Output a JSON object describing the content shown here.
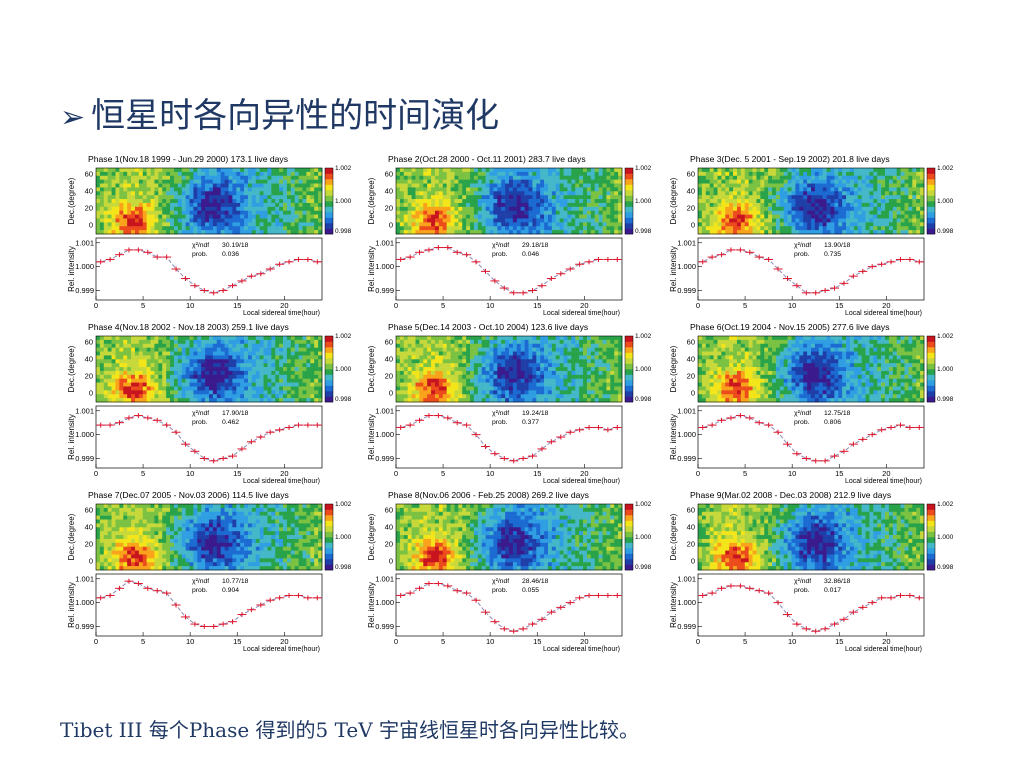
{
  "slide": {
    "title_bullet": "➢",
    "title": "恒星时各向异性的时间演化",
    "footer": "Tibet III 每个Phase 得到的5 TeV 宇宙线恒星时各向异性比较。"
  },
  "colors": {
    "title_text": "#1f3864",
    "curve": "#8a8ab8",
    "points": "#e0142b",
    "palette": [
      "#3a1a8c",
      "#1f3ea8",
      "#1c6bd2",
      "#2f9ee2",
      "#44b7c9",
      "#29a34a",
      "#7cc242",
      "#c7d93a",
      "#f3e51a",
      "#f9a21b",
      "#ec4b1c",
      "#c8141e"
    ]
  },
  "chart_data": [
    {
      "type": "line",
      "phase_title": "Phase 1(Nov.18 1999 - Jun.29 2000) 173.1 live days",
      "chi2_label": "χ²/ndf",
      "chi2": "30.19/18",
      "prob_label": "prob.",
      "prob": "0.036",
      "x": [
        0.5,
        1.5,
        2.5,
        3.5,
        4.5,
        5.5,
        6.5,
        7.5,
        8.5,
        9.5,
        10.5,
        11.5,
        12.5,
        13.5,
        14.5,
        15.5,
        16.5,
        17.5,
        18.5,
        19.5,
        20.5,
        21.5,
        22.5,
        23.5
      ],
      "y": [
        1.0002,
        1.0003,
        1.0005,
        1.0007,
        1.0007,
        1.0006,
        1.0004,
        1.0004,
        0.9999,
        0.9995,
        0.9992,
        0.999,
        0.9989,
        0.999,
        0.9992,
        0.9994,
        0.9996,
        0.9997,
        0.9999,
        1.0001,
        1.0002,
        1.0003,
        1.0003,
        1.0002
      ],
      "xlabel": "Local sidereal time(hour)",
      "ylabel": "Rel. intensity",
      "map_ylabel": "Dec.(degree)",
      "xticks": [
        0,
        5,
        10,
        15,
        20
      ],
      "yticks": [
        "1.001",
        "1.000",
        "0.999"
      ],
      "map_yticks": [
        "60",
        "40",
        "20",
        "0"
      ],
      "colorbar_ticks": [
        "1.002",
        "1.000",
        "0.998"
      ],
      "xlim": [
        0,
        24
      ],
      "ylim": [
        0.9986,
        1.0012
      ]
    },
    {
      "type": "line",
      "phase_title": "Phase 2(Oct.28 2000 - Oct.11 2001) 283.7 live days",
      "chi2_label": "χ²/ndf",
      "chi2": "29.18/18",
      "prob_label": "prob.",
      "prob": "0.046",
      "x": [
        0.5,
        1.5,
        2.5,
        3.5,
        4.5,
        5.5,
        6.5,
        7.5,
        8.5,
        9.5,
        10.5,
        11.5,
        12.5,
        13.5,
        14.5,
        15.5,
        16.5,
        17.5,
        18.5,
        19.5,
        20.5,
        21.5,
        22.5,
        23.5
      ],
      "y": [
        1.0003,
        1.0004,
        1.0006,
        1.0007,
        1.0008,
        1.0008,
        1.0006,
        1.0005,
        1.0002,
        0.9998,
        0.9994,
        0.9991,
        0.9989,
        0.9989,
        0.999,
        0.9992,
        0.9995,
        0.9997,
        0.9999,
        1.0001,
        1.0002,
        1.0003,
        1.0003,
        1.0003
      ],
      "xlabel": "Local sidereal time(hour)",
      "ylabel": "Rel. intensity",
      "map_ylabel": "Dec.(degree)",
      "xticks": [
        0,
        5,
        10,
        15,
        20
      ],
      "yticks": [
        "1.001",
        "1.000",
        "0.999"
      ],
      "map_yticks": [
        "60",
        "40",
        "20",
        "0"
      ],
      "colorbar_ticks": [
        "1.002",
        "1.000",
        "0.998"
      ],
      "xlim": [
        0,
        24
      ],
      "ylim": [
        0.9986,
        1.0012
      ]
    },
    {
      "type": "line",
      "phase_title": "Phase 3(Dec. 5 2001 - Sep.19 2002) 201.8 live days",
      "chi2_label": "χ²/ndf",
      "chi2": "13.90/18",
      "prob_label": "prob.",
      "prob": "0.735",
      "x": [
        0.5,
        1.5,
        2.5,
        3.5,
        4.5,
        5.5,
        6.5,
        7.5,
        8.5,
        9.5,
        10.5,
        11.5,
        12.5,
        13.5,
        14.5,
        15.5,
        16.5,
        17.5,
        18.5,
        19.5,
        20.5,
        21.5,
        22.5,
        23.5
      ],
      "y": [
        1.0002,
        1.0004,
        1.0005,
        1.0007,
        1.0007,
        1.0006,
        1.0004,
        1.0003,
        0.9999,
        0.9995,
        0.9992,
        0.9989,
        0.9989,
        0.999,
        0.9991,
        0.9993,
        0.9996,
        0.9998,
        1.0,
        1.0001,
        1.0002,
        1.0003,
        1.0003,
        1.0002
      ],
      "xlabel": "Local sidereal time(hour)",
      "ylabel": "Rel. intensity",
      "map_ylabel": "Dec.(degree)",
      "xticks": [
        0,
        5,
        10,
        15,
        20
      ],
      "yticks": [
        "1.001",
        "1.000",
        "0.999"
      ],
      "map_yticks": [
        "60",
        "40",
        "20",
        "0"
      ],
      "colorbar_ticks": [
        "1.002",
        "1.000",
        "0.998"
      ],
      "xlim": [
        0,
        24
      ],
      "ylim": [
        0.9986,
        1.0012
      ]
    },
    {
      "type": "line",
      "phase_title": "Phase 4(Nov.18 2002 - Nov.18 2003) 259.1 live days",
      "chi2_label": "χ²/ndf",
      "chi2": "17.90/18",
      "prob_label": "prob.",
      "prob": "0.462",
      "x": [
        0.5,
        1.5,
        2.5,
        3.5,
        4.5,
        5.5,
        6.5,
        7.5,
        8.5,
        9.5,
        10.5,
        11.5,
        12.5,
        13.5,
        14.5,
        15.5,
        16.5,
        17.5,
        18.5,
        19.5,
        20.5,
        21.5,
        22.5,
        23.5
      ],
      "y": [
        1.0004,
        1.0004,
        1.0005,
        1.0007,
        1.0008,
        1.0007,
        1.0006,
        1.0004,
        1.0001,
        0.9996,
        0.9993,
        0.999,
        0.9989,
        0.999,
        0.9991,
        0.9994,
        0.9997,
        0.9999,
        1.0001,
        1.0002,
        1.0003,
        1.0004,
        1.0004,
        1.0004
      ],
      "xlabel": "Local sidereal time(hour)",
      "ylabel": "Rel. intensity",
      "map_ylabel": "Dec.(degree)",
      "xticks": [
        0,
        5,
        10,
        15,
        20
      ],
      "yticks": [
        "1.001",
        "1.000",
        "0.999"
      ],
      "map_yticks": [
        "60",
        "40",
        "20",
        "0"
      ],
      "colorbar_ticks": [
        "1.002",
        "1.000",
        "0.998"
      ],
      "xlim": [
        0,
        24
      ],
      "ylim": [
        0.9986,
        1.0012
      ]
    },
    {
      "type": "line",
      "phase_title": "Phase 5(Dec.14 2003 - Oct.10 2004) 123.6 live days",
      "chi2_label": "χ²/ndf",
      "chi2": "19.24/18",
      "prob_label": "prob.",
      "prob": "0.377",
      "x": [
        0.5,
        1.5,
        2.5,
        3.5,
        4.5,
        5.5,
        6.5,
        7.5,
        8.5,
        9.5,
        10.5,
        11.5,
        12.5,
        13.5,
        14.5,
        15.5,
        16.5,
        17.5,
        18.5,
        19.5,
        20.5,
        21.5,
        22.5,
        23.5
      ],
      "y": [
        1.0003,
        1.0004,
        1.0006,
        1.0008,
        1.0008,
        1.0007,
        1.0005,
        1.0004,
        1.0,
        0.9995,
        0.9992,
        0.999,
        0.9989,
        0.999,
        0.9991,
        0.9994,
        0.9997,
        0.9999,
        1.0001,
        1.0002,
        1.0003,
        1.0003,
        1.0002,
        1.0003
      ],
      "xlabel": "Local sidereal time(hour)",
      "ylabel": "Rel. intensity",
      "map_ylabel": "Dec.(degree)",
      "xticks": [
        0,
        5,
        10,
        15,
        20
      ],
      "yticks": [
        "1.001",
        "1.000",
        "0.999"
      ],
      "map_yticks": [
        "60",
        "40",
        "20",
        "0"
      ],
      "colorbar_ticks": [
        "1.002",
        "1.000",
        "0.998"
      ],
      "xlim": [
        0,
        24
      ],
      "ylim": [
        0.9986,
        1.0012
      ]
    },
    {
      "type": "line",
      "phase_title": "Phase 6(Oct.19 2004 - Nov.15 2005) 277.6 live days",
      "chi2_label": "χ²/ndf",
      "chi2": "12.75/18",
      "prob_label": "prob.",
      "prob": "0.806",
      "x": [
        0.5,
        1.5,
        2.5,
        3.5,
        4.5,
        5.5,
        6.5,
        7.5,
        8.5,
        9.5,
        10.5,
        11.5,
        12.5,
        13.5,
        14.5,
        15.5,
        16.5,
        17.5,
        18.5,
        19.5,
        20.5,
        21.5,
        22.5,
        23.5
      ],
      "y": [
        1.0003,
        1.0004,
        1.0006,
        1.0007,
        1.0008,
        1.0007,
        1.0005,
        1.0004,
        1.0001,
        0.9996,
        0.9992,
        0.999,
        0.9989,
        0.9989,
        0.9991,
        0.9993,
        0.9996,
        0.9998,
        1.0,
        1.0002,
        1.0003,
        1.0004,
        1.0003,
        1.0003
      ],
      "xlabel": "Local sidereal time(hour)",
      "ylabel": "Rel. intensity",
      "map_ylabel": "Dec.(degree)",
      "xticks": [
        0,
        5,
        10,
        15,
        20
      ],
      "yticks": [
        "1.001",
        "1.000",
        "0.999"
      ],
      "map_yticks": [
        "60",
        "40",
        "20",
        "0"
      ],
      "colorbar_ticks": [
        "1.002",
        "1.000",
        "0.998"
      ],
      "xlim": [
        0,
        24
      ],
      "ylim": [
        0.9986,
        1.0012
      ]
    },
    {
      "type": "line",
      "phase_title": "Phase 7(Dec.07 2005 - Nov.03 2006) 114.5 live days",
      "chi2_label": "χ²/ndf",
      "chi2": "10.77/18",
      "prob_label": "prob.",
      "prob": "0.904",
      "x": [
        0.5,
        1.5,
        2.5,
        3.5,
        4.5,
        5.5,
        6.5,
        7.5,
        8.5,
        9.5,
        10.5,
        11.5,
        12.5,
        13.5,
        14.5,
        15.5,
        16.5,
        17.5,
        18.5,
        19.5,
        20.5,
        21.5,
        22.5,
        23.5
      ],
      "y": [
        1.0002,
        1.0003,
        1.0006,
        1.0009,
        1.0008,
        1.0006,
        1.0005,
        1.0004,
        0.9999,
        0.9994,
        0.9991,
        0.999,
        0.999,
        0.9991,
        0.9992,
        0.9995,
        0.9997,
        0.9999,
        1.0001,
        1.0002,
        1.0003,
        1.0003,
        1.0002,
        1.0002
      ],
      "xlabel": "Local sidereal time(hour)",
      "ylabel": "Rel. intensity",
      "map_ylabel": "Dec.(degree)",
      "xticks": [
        0,
        5,
        10,
        15,
        20
      ],
      "yticks": [
        "1.001",
        "1.000",
        "0.999"
      ],
      "map_yticks": [
        "60",
        "40",
        "20",
        "0"
      ],
      "colorbar_ticks": [
        "1.002",
        "1.000",
        "0.998"
      ],
      "xlim": [
        0,
        24
      ],
      "ylim": [
        0.9986,
        1.0012
      ]
    },
    {
      "type": "line",
      "phase_title": "Phase 8(Nov.06 2006 - Feb.25 2008) 269.2 live days",
      "chi2_label": "χ²/ndf",
      "chi2": "28.46/18",
      "prob_label": "prob.",
      "prob": "0.055",
      "x": [
        0.5,
        1.5,
        2.5,
        3.5,
        4.5,
        5.5,
        6.5,
        7.5,
        8.5,
        9.5,
        10.5,
        11.5,
        12.5,
        13.5,
        14.5,
        15.5,
        16.5,
        17.5,
        18.5,
        19.5,
        20.5,
        21.5,
        22.5,
        23.5
      ],
      "y": [
        1.0003,
        1.0004,
        1.0006,
        1.0008,
        1.0008,
        1.0007,
        1.0005,
        1.0004,
        1.0001,
        0.9996,
        0.9992,
        0.9989,
        0.9988,
        0.9989,
        0.9991,
        0.9993,
        0.9996,
        0.9998,
        1.0,
        1.0002,
        1.0003,
        1.0003,
        1.0003,
        1.0003
      ],
      "xlabel": "Local sidereal time(hour)",
      "ylabel": "Rel. intensity",
      "map_ylabel": "Dec.(degree)",
      "xticks": [
        0,
        5,
        10,
        15,
        20
      ],
      "yticks": [
        "1.001",
        "1.000",
        "0.999"
      ],
      "map_yticks": [
        "60",
        "40",
        "20",
        "0"
      ],
      "colorbar_ticks": [
        "1.002",
        "1.000",
        "0.998"
      ],
      "xlim": [
        0,
        24
      ],
      "ylim": [
        0.9986,
        1.0012
      ]
    },
    {
      "type": "line",
      "phase_title": "Phase 9(Mar.02 2008 - Dec.03 2008) 212.9 live days",
      "chi2_label": "χ²/ndf",
      "chi2": "32.86/18",
      "prob_label": "prob.",
      "prob": "0.017",
      "x": [
        0.5,
        1.5,
        2.5,
        3.5,
        4.5,
        5.5,
        6.5,
        7.5,
        8.5,
        9.5,
        10.5,
        11.5,
        12.5,
        13.5,
        14.5,
        15.5,
        16.5,
        17.5,
        18.5,
        19.5,
        20.5,
        21.5,
        22.5,
        23.5
      ],
      "y": [
        1.0003,
        1.0004,
        1.0006,
        1.0007,
        1.0007,
        1.0006,
        1.0005,
        1.0004,
        1.0,
        0.9995,
        0.9991,
        0.9989,
        0.9988,
        0.9989,
        0.9991,
        0.9993,
        0.9996,
        0.9998,
        1.0,
        1.0002,
        1.0002,
        1.0003,
        1.0003,
        1.0002
      ],
      "xlabel": "Local sidereal time(hour)",
      "ylabel": "Rel. intensity",
      "map_ylabel": "Dec.(degree)",
      "xticks": [
        0,
        5,
        10,
        15,
        20
      ],
      "yticks": [
        "1.001",
        "1.000",
        "0.999"
      ],
      "map_yticks": [
        "60",
        "40",
        "20",
        "0"
      ],
      "colorbar_ticks": [
        "1.002",
        "1.000",
        "0.998"
      ],
      "xlim": [
        0,
        24
      ],
      "ylim": [
        0.9986,
        1.0012
      ]
    }
  ]
}
